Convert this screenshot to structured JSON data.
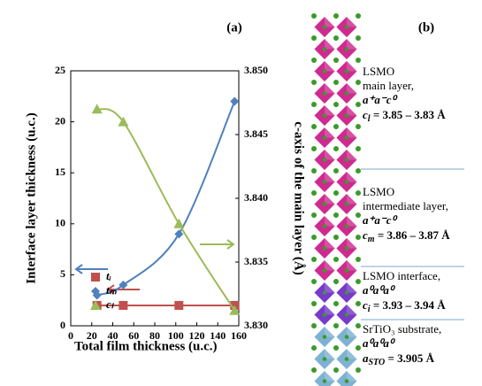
{
  "chart_data": {
    "type": "scatter",
    "panel_label": "(a)",
    "x_label": "Total film thickness (u.c.)",
    "y_label": "Interface layer thickness (u.c.)",
    "y2_label": "c-axis of the main layer (Å)",
    "x": [
      25,
      50,
      103,
      156
    ],
    "xlim": [
      0,
      160
    ],
    "xticks": [
      0,
      20,
      40,
      60,
      80,
      100,
      120,
      140,
      160
    ],
    "ylim": [
      0,
      25
    ],
    "yticks": [
      0,
      5,
      10,
      15,
      20,
      25
    ],
    "y2lim": [
      3.83,
      3.85
    ],
    "y2ticks": [
      {
        "value": 3.83,
        "label": "3.830"
      },
      3.835,
      {
        "value": 3.84,
        "label": "3.840"
      },
      3.845,
      {
        "value": 3.85,
        "label": "3.850"
      }
    ],
    "series": [
      {
        "name": "tᵢ",
        "color": "#c0504d",
        "marker": "square",
        "values": [
          2,
          2,
          2,
          2
        ]
      },
      {
        "name": "tₘ",
        "color": "#4f81bd",
        "marker": "diamond",
        "values": [
          3,
          4,
          9,
          22
        ]
      },
      {
        "name": "cₗ",
        "color": "#9bbb59",
        "marker": "triangle",
        "axis": "y2",
        "values": [
          3.847,
          3.846,
          3.838,
          3.8312
        ]
      }
    ]
  },
  "panel_b": {
    "label": "(b)",
    "blocks": [
      {
        "lines": [
          "LSMO",
          "main layer,"
        ],
        "tilt": "a⁺a⁻c⁰",
        "formula": {
          "symbol": "c",
          "sub": "l",
          "rest": " = 3.85 – 3.83 Å"
        }
      },
      {
        "lines": [
          "LSMO",
          "intermediate layer,"
        ],
        "tilt": "a⁺a⁻c⁰",
        "formula": {
          "symbol": "c",
          "sub": "m",
          "rest": " = 3.86 – 3.87 Å"
        }
      },
      {
        "lines": [
          "LSMO interface,"
        ],
        "tilt": "a⁰a⁰a⁰",
        "formula": {
          "symbol": "c",
          "sub": "i",
          "rest": " = 3.93 – 3.94 Å"
        }
      },
      {
        "lines": [
          "SrTiO₃ substrate,"
        ],
        "tilt": "a⁰a⁰a⁰",
        "formula": {
          "symbol": "a",
          "sub": "STO",
          "rest": " = 3.905 Å"
        }
      }
    ]
  }
}
